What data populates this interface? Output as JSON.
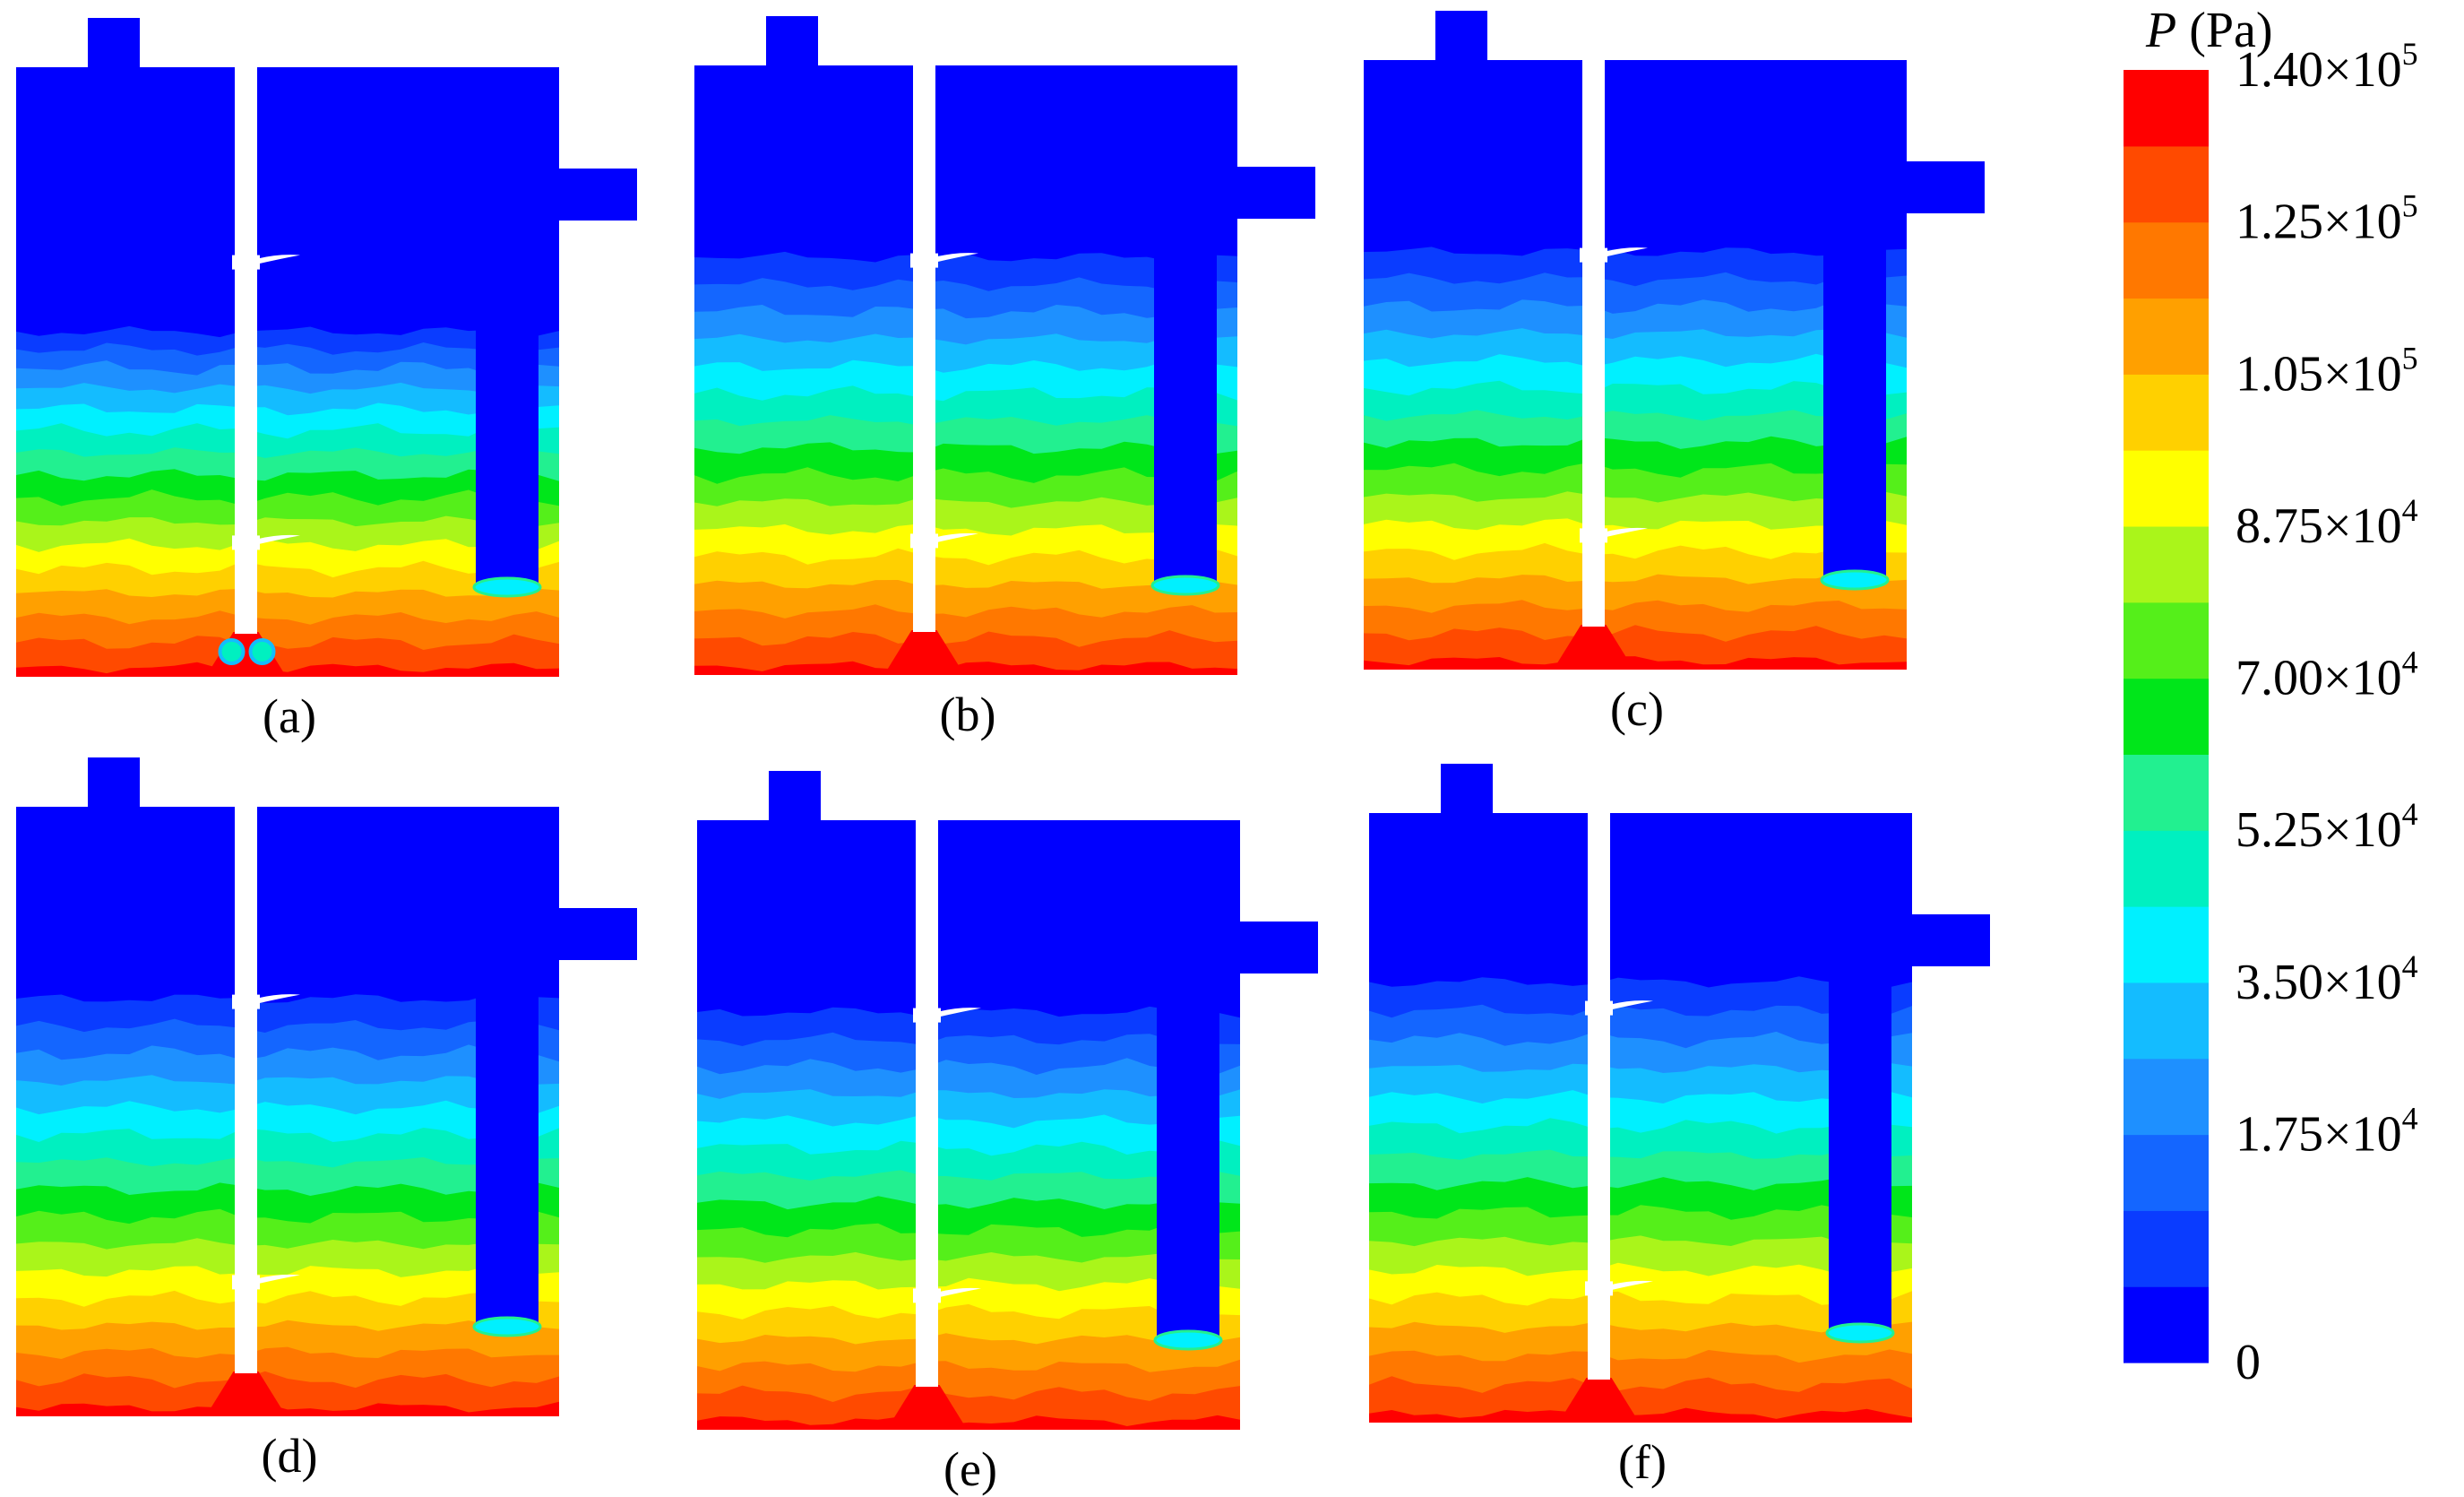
{
  "colorbar": {
    "title_symbol": "P",
    "title_unit": "(Pa)",
    "levels": [
      "#0000ff",
      "#0a3cff",
      "#1466ff",
      "#1e90ff",
      "#14bcff",
      "#00f0ff",
      "#00f0c0",
      "#22f090",
      "#00e61a",
      "#55ef1a",
      "#aaf51a",
      "#ffff00",
      "#ffd000",
      "#ffa000",
      "#ff7800",
      "#ff4a00",
      "#ff0000"
    ],
    "ticks": [
      {
        "mantissa": "1.40×10",
        "exp": "5",
        "level_index": 17
      },
      {
        "mantissa": "1.25×10",
        "exp": "5",
        "level_index": 15
      },
      {
        "mantissa": "1.05×10",
        "exp": "5",
        "level_index": 13
      },
      {
        "mantissa": "8.75×10",
        "exp": "4",
        "level_index": 11
      },
      {
        "mantissa": "7.00×10",
        "exp": "4",
        "level_index": 9
      },
      {
        "mantissa": "5.25×10",
        "exp": "4",
        "level_index": 7
      },
      {
        "mantissa": "3.50×10",
        "exp": "4",
        "level_index": 5
      },
      {
        "mantissa": "1.75×10",
        "exp": "4",
        "level_index": 3
      },
      {
        "mantissa": "0",
        "exp": "",
        "level_index": 0
      }
    ]
  },
  "panels": [
    {
      "label": "(a)",
      "variant": "a"
    },
    {
      "label": "(b)",
      "variant": "b"
    },
    {
      "label": "(c)",
      "variant": "c"
    },
    {
      "label": "(d)",
      "variant": "d"
    },
    {
      "label": "(e)",
      "variant": "e"
    },
    {
      "label": "(f)",
      "variant": "f"
    }
  ],
  "colors": {
    "low": "#0000ff",
    "high": "#ff0000",
    "background": "#ffffff"
  }
}
